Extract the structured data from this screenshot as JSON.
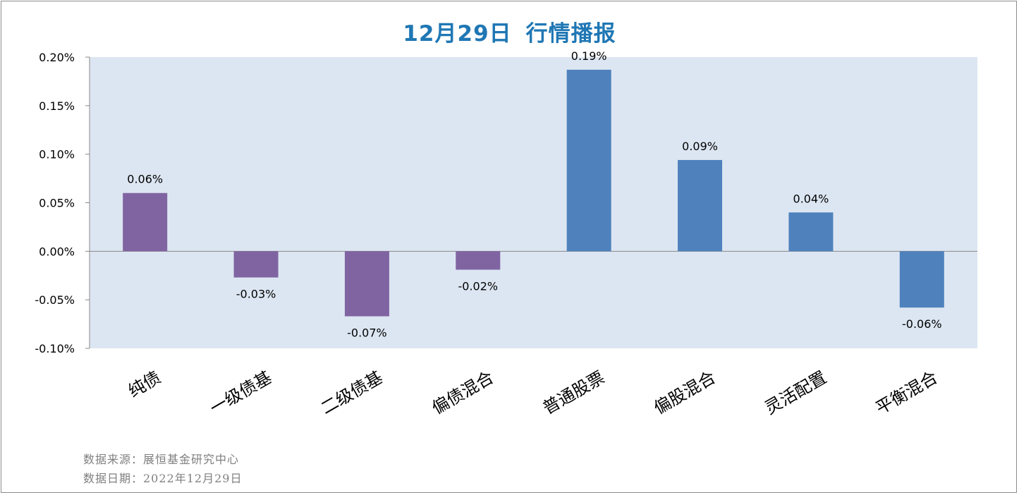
{
  "chart_data": {
    "type": "bar",
    "title_date": "12月29日",
    "title_text": "行情播报",
    "categories": [
      "纯债",
      "一级债基",
      "二级债基",
      "偏债混合",
      "普通股票",
      "偏股混合",
      "灵活配置",
      "平衡混合"
    ],
    "values": [
      0.0006,
      -0.00027,
      -0.00067,
      -0.00019,
      0.00187,
      0.00094,
      0.0004,
      -0.00058
    ],
    "data_labels": [
      "0.06%",
      "-0.03%",
      "-0.07%",
      "-0.02%",
      "0.19%",
      "0.09%",
      "0.04%",
      "-0.06%"
    ],
    "bar_colors": [
      "#8064a2",
      "#8064a2",
      "#8064a2",
      "#8064a2",
      "#4f81bd",
      "#4f81bd",
      "#4f81bd",
      "#4f81bd"
    ],
    "ylim": [
      -0.001,
      0.002
    ],
    "yticks": [
      0.002,
      0.0015,
      0.001,
      0.0005,
      0.0,
      -0.0005,
      -0.001
    ],
    "ytick_labels": [
      "0.20%",
      "0.15%",
      "0.10%",
      "0.05%",
      "0.00%",
      "-0.05%",
      "-0.10%"
    ],
    "plot_background": "#dce6f2",
    "grid": false,
    "xlabel": "",
    "ylabel": ""
  },
  "footer": {
    "source": "数据来源：展恒基金研究中心",
    "date": "数据日期：2022年12月29日"
  }
}
